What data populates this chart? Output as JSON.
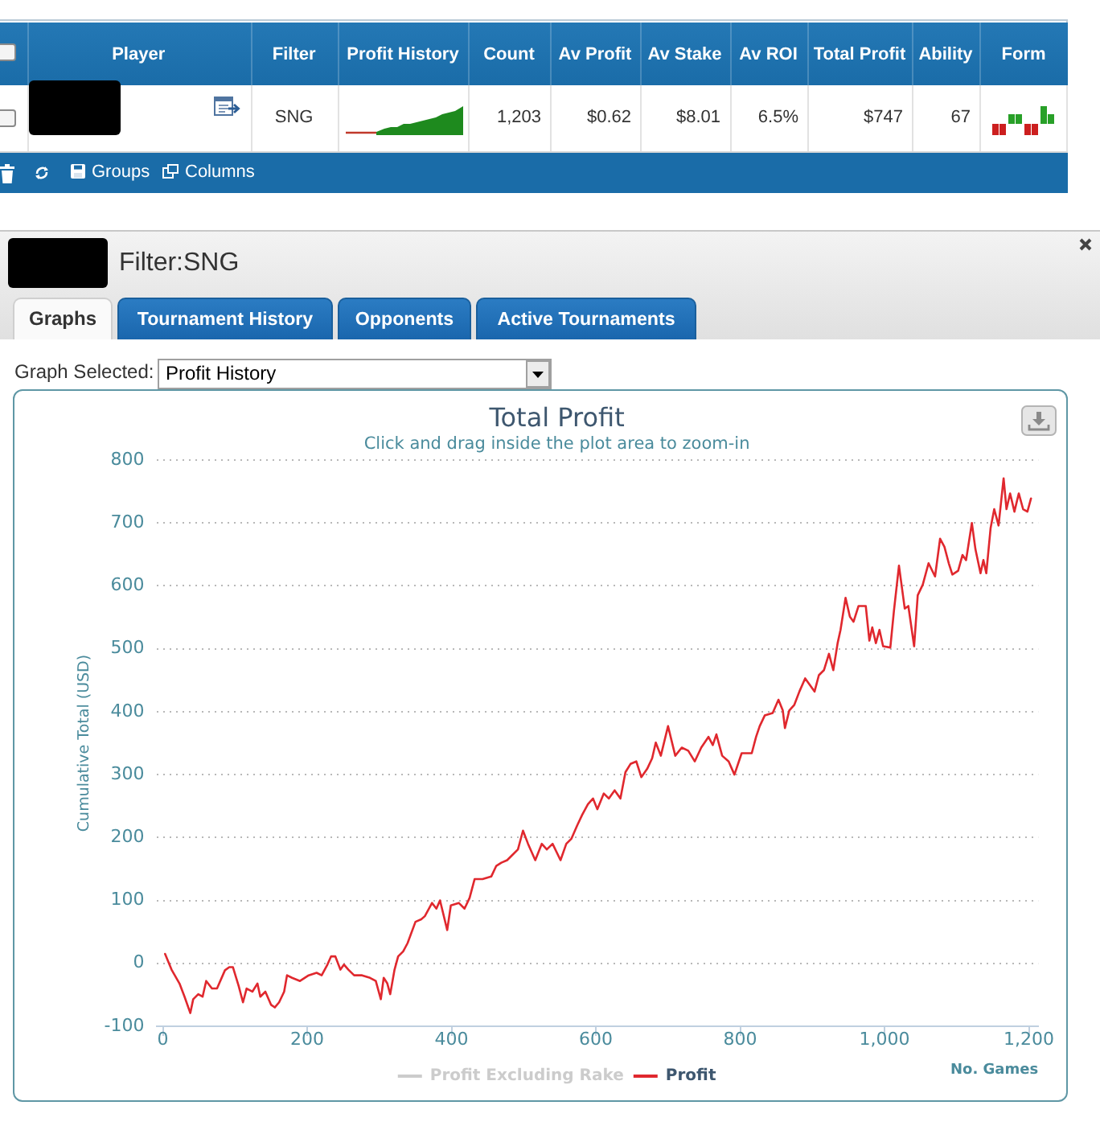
{
  "chart_data": {
    "type": "line",
    "title": "Total Profit",
    "subtitle": "Click and drag inside the plot area to zoom-in",
    "xlabel": "No. Games",
    "ylabel": "Cumulative Total (USD)",
    "annotations": [
      "Player",
      "Filter",
      "Profit History",
      "Count",
      "Av Profit",
      "Av Stake",
      "Av ROI",
      "Total Profit",
      "Ability",
      "Form",
      "SNG",
      "1,203",
      "$0.62",
      "$8.01",
      "6.5%",
      "$747",
      "67",
      "Groups",
      "Columns",
      "Filter:SNG",
      "Graphs",
      "Tournament History",
      "Opponents",
      "Active Tournaments",
      "Graph Selected:",
      "Profit History"
    ],
    "x": [
      3,
      12,
      23,
      30,
      38,
      42,
      49,
      55,
      60,
      68,
      75,
      86,
      92,
      97,
      105,
      111,
      116,
      124,
      131,
      135,
      142,
      150,
      155,
      161,
      168,
      172,
      179,
      190,
      202,
      213,
      220,
      228,
      233,
      239,
      246,
      251,
      257,
      265,
      276,
      287,
      295,
      302,
      306,
      311,
      315,
      321,
      326,
      333,
      339,
      350,
      358,
      363,
      373,
      379,
      384,
      394,
      399,
      410,
      418,
      425,
      432,
      443,
      455,
      462,
      469,
      477,
      484,
      492,
      499,
      506,
      516,
      525,
      532,
      540,
      551,
      559,
      566,
      574,
      581,
      589,
      596,
      602,
      611,
      618,
      626,
      634,
      641,
      648,
      656,
      663,
      671,
      678,
      683,
      690,
      700,
      710,
      719,
      728,
      737,
      746,
      756,
      762,
      767,
      775,
      784,
      792,
      802,
      816,
      822,
      827,
      834,
      845,
      853,
      859,
      862,
      868,
      875,
      882,
      890,
      903,
      909,
      916,
      923,
      929,
      935,
      939,
      946,
      952,
      957,
      964,
      974,
      979,
      983,
      988,
      993,
      998,
      1008,
      1013,
      1020,
      1028,
      1033,
      1041,
      1046,
      1053,
      1061,
      1070,
      1077,
      1083,
      1089,
      1094,
      1102,
      1108,
      1113,
      1121,
      1126,
      1133,
      1137,
      1141,
      1147,
      1152,
      1158,
      1165,
      1169,
      1174,
      1180,
      1186,
      1192,
      1198,
      1203
    ],
    "series": [
      {
        "name": "Profit Excluding Rake",
        "color": "#cccccc",
        "values": [
          null,
          null,
          null,
          null,
          null,
          null,
          null,
          null,
          null,
          null,
          null,
          null,
          null,
          null,
          null,
          null,
          null,
          null,
          null,
          null,
          null,
          null,
          null,
          null,
          null,
          null,
          null,
          null,
          null,
          null,
          null,
          null,
          null,
          null,
          null,
          null,
          null,
          null,
          null,
          null,
          null,
          null,
          null,
          null,
          null,
          null,
          null,
          null,
          null,
          null,
          null,
          null,
          null,
          null,
          null,
          null,
          null,
          null,
          null,
          null,
          null,
          null,
          null,
          null,
          null,
          null,
          null,
          null,
          null,
          null,
          null,
          null,
          null,
          null,
          null,
          null,
          null,
          null,
          null,
          null,
          null,
          null,
          null,
          null,
          null,
          null,
          null,
          null,
          null,
          null,
          null,
          null,
          null,
          null,
          null,
          null,
          null,
          null,
          null,
          null,
          null,
          null,
          null,
          null,
          null,
          null,
          null,
          null,
          null,
          null,
          null,
          null,
          null,
          null,
          null,
          null,
          null,
          null,
          null,
          null,
          null,
          null,
          null,
          null,
          null,
          null,
          null,
          null,
          null,
          null,
          null,
          null,
          null,
          null,
          null,
          null,
          null,
          null,
          null,
          null,
          null,
          null,
          null,
          null,
          null,
          null,
          null,
          null,
          null,
          null,
          null,
          null,
          null,
          null,
          null,
          null,
          null,
          null,
          null,
          null,
          null,
          null,
          null,
          null,
          null,
          null,
          null,
          null,
          null
        ]
      },
      {
        "name": "Profit",
        "color": "#e0282e",
        "values": [
          15,
          -10,
          -32,
          -53,
          -79,
          -57,
          -49,
          -53,
          -28,
          -40,
          -40,
          -11,
          -6,
          -6,
          -36,
          -62,
          -40,
          -45,
          -32,
          -53,
          -45,
          -66,
          -70,
          -62,
          -45,
          -19,
          -23,
          -28,
          -19,
          -15,
          -19,
          -2,
          11,
          11,
          -10,
          -2,
          -10,
          -19,
          -19,
          -23,
          -28,
          -57,
          -23,
          -32,
          -49,
          -10,
          11,
          19,
          32,
          66,
          70,
          75,
          96,
          87,
          100,
          53,
          92,
          96,
          87,
          104,
          134,
          134,
          138,
          155,
          160,
          164,
          172,
          181,
          211,
          190,
          164,
          190,
          181,
          190,
          164,
          190,
          198,
          219,
          236,
          253,
          262,
          245,
          270,
          262,
          275,
          262,
          304,
          317,
          321,
          296,
          309,
          326,
          351,
          330,
          377,
          330,
          343,
          338,
          321,
          343,
          360,
          347,
          364,
          330,
          321,
          300,
          334,
          334,
          360,
          377,
          394,
          398,
          419,
          402,
          374,
          402,
          411,
          432,
          453,
          432,
          458,
          466,
          492,
          466,
          509,
          530,
          581,
          551,
          543,
          568,
          568,
          513,
          534,
          509,
          530,
          504,
          502,
          560,
          632,
          564,
          568,
          504,
          585,
          602,
          636,
          615,
          675,
          662,
          636,
          618,
          624,
          649,
          641,
          700,
          658,
          620,
          641,
          620,
          692,
          722,
          696,
          771,
          722,
          747,
          718,
          747,
          722,
          718,
          739
        ]
      }
    ],
    "xlim": [
      -8,
      1213
    ],
    "xticks": [
      0,
      200,
      400,
      600,
      800,
      {
        "value": 1000,
        "label": "1,000"
      },
      {
        "value": 1200,
        "label": "1,200"
      }
    ],
    "ylim": [
      -100,
      800
    ],
    "yticks": [
      -100,
      0,
      100,
      200,
      300,
      400,
      500,
      600,
      700,
      800
    ],
    "grid": "y",
    "legend": "bottom"
  }
}
